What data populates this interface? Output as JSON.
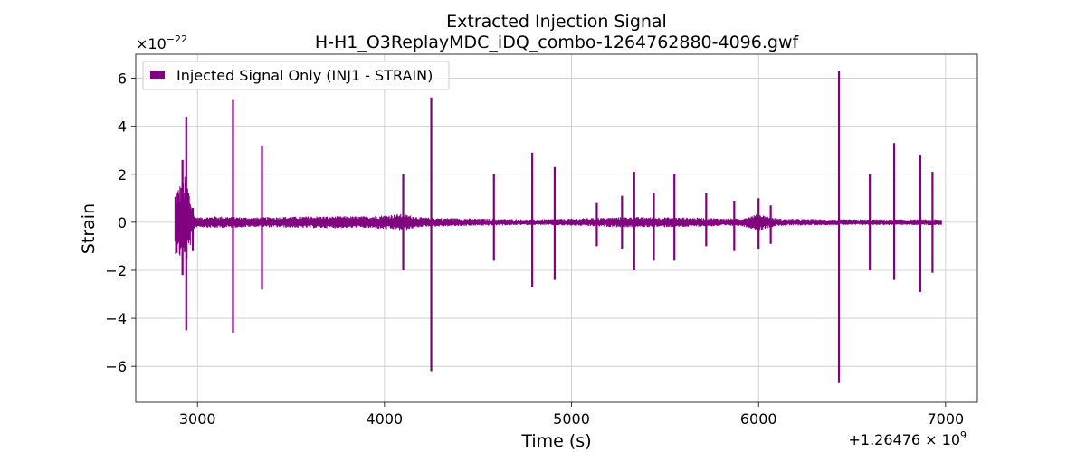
{
  "chart_data": {
    "type": "line",
    "title_line1": "Extracted Injection Signal",
    "title_line2": "H-H1_O3ReplayMDC_iDQ_combo-1264762880-4096.gwf",
    "xlabel": "Time (s)",
    "ylabel": "Strain",
    "y_multiplier": "×10",
    "y_multiplier_exp": "−22",
    "x_offset_base": "+1.26476 × 10",
    "x_offset_exp": "9",
    "xlim": [
      2670,
      7170
    ],
    "ylim": [
      -7.5,
      7.0
    ],
    "x_ticks": [
      3000,
      4000,
      5000,
      6000,
      7000
    ],
    "x_tick_labels": [
      "3000",
      "4000",
      "5000",
      "6000",
      "7000"
    ],
    "y_ticks": [
      -6,
      -4,
      -2,
      0,
      2,
      4,
      6
    ],
    "y_tick_labels": [
      "−6",
      "−4",
      "−2",
      "0",
      "2",
      "4",
      "6"
    ],
    "grid": true,
    "legend_position": "top-left",
    "color": "#800080",
    "series": [
      {
        "name": "Injected Signal Only (INJ1 - STRAIN)",
        "data_start": 2880,
        "data_end": 6980,
        "envelope": [
          [
            2880,
            1.3,
            -1.3
          ],
          [
            2940,
            2.0,
            -1.8
          ],
          [
            2980,
            0.3,
            -0.3
          ],
          [
            3000,
            0.2,
            -0.2
          ],
          [
            3100,
            0.25,
            -0.25
          ],
          [
            3300,
            0.2,
            -0.2
          ],
          [
            3600,
            0.25,
            -0.25
          ],
          [
            3900,
            0.25,
            -0.25
          ],
          [
            4100,
            0.35,
            -0.35
          ],
          [
            4200,
            0.2,
            -0.2
          ],
          [
            4500,
            0.15,
            -0.15
          ],
          [
            4800,
            0.12,
            -0.12
          ],
          [
            5000,
            0.15,
            -0.15
          ],
          [
            5300,
            0.22,
            -0.22
          ],
          [
            5600,
            0.2,
            -0.2
          ],
          [
            5900,
            0.15,
            -0.15
          ],
          [
            6000,
            0.35,
            -0.35
          ],
          [
            6100,
            0.15,
            -0.15
          ],
          [
            6400,
            0.12,
            -0.12
          ],
          [
            6700,
            0.12,
            -0.12
          ],
          [
            6980,
            0.12,
            -0.12
          ]
        ],
        "spikes": [
          [
            2920,
            2.6,
            -2.2
          ],
          [
            2940,
            4.4,
            -4.5
          ],
          [
            2975,
            0.6,
            -1.2
          ],
          [
            3190,
            5.1,
            -4.6
          ],
          [
            3345,
            3.2,
            -2.8
          ],
          [
            4100,
            2.0,
            -2.0
          ],
          [
            4250,
            5.2,
            -6.2
          ],
          [
            4585,
            2.0,
            -1.6
          ],
          [
            4790,
            2.9,
            -2.7
          ],
          [
            4910,
            2.3,
            -2.4
          ],
          [
            5135,
            0.8,
            -1.0
          ],
          [
            5270,
            1.1,
            -1.1
          ],
          [
            5335,
            2.1,
            -2.0
          ],
          [
            5440,
            1.2,
            -1.6
          ],
          [
            5550,
            2.0,
            -1.6
          ],
          [
            5720,
            1.2,
            -1.0
          ],
          [
            5870,
            0.9,
            -1.2
          ],
          [
            6000,
            1.0,
            -1.1
          ],
          [
            6065,
            0.7,
            -0.9
          ],
          [
            6430,
            6.3,
            -6.7
          ],
          [
            6595,
            2.0,
            -2.0
          ],
          [
            6725,
            3.3,
            -2.4
          ],
          [
            6865,
            2.8,
            -2.9
          ],
          [
            6930,
            2.1,
            -2.1
          ]
        ]
      }
    ]
  }
}
